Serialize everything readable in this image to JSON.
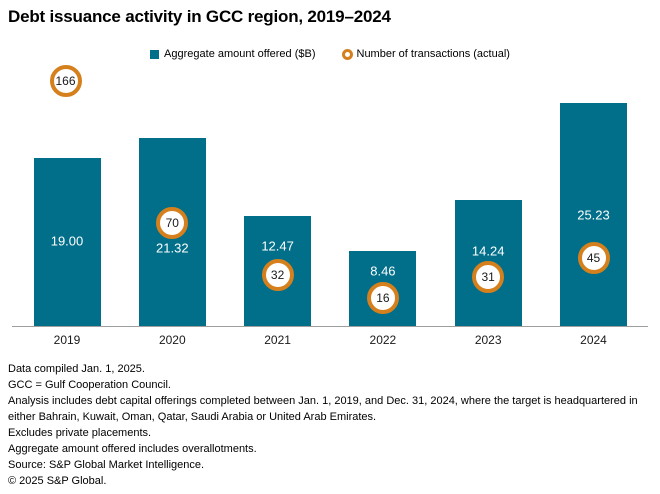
{
  "title": "Debt issuance activity in GCC region, 2019–2024",
  "legend": {
    "amount_label": "Aggregate amount offered ($B)",
    "transactions_label": "Number of transactions (actual)"
  },
  "chart_data": {
    "type": "bar",
    "categories": [
      "2019",
      "2020",
      "2021",
      "2022",
      "2023",
      "2024"
    ],
    "series": [
      {
        "name": "Aggregate amount offered ($B)",
        "values": [
          19.0,
          21.32,
          12.47,
          8.46,
          14.24,
          25.23
        ],
        "labels": [
          "19.00",
          "21.32",
          "12.47",
          "8.46",
          "14.24",
          "25.23"
        ]
      },
      {
        "name": "Number of transactions (actual)",
        "values": [
          166,
          70,
          32,
          16,
          31,
          45
        ],
        "labels": [
          "166",
          "70",
          "32",
          "16",
          "31",
          "45"
        ]
      }
    ],
    "xlabel": "",
    "ylabel": "",
    "ylim": [
      0,
      29.5
    ],
    "grid": false,
    "legend_position": "top",
    "value_labels_shown": true
  },
  "colors": {
    "bar": "#026f8a",
    "transaction_ring": "#d5801c",
    "axis_line": "#9e9e9e",
    "bar_value_text": "#ffffff",
    "circle_text": "#1a1a1a"
  },
  "footnotes": [
    "Data compiled Jan. 1, 2025.",
    "GCC = Gulf Cooperation Council.",
    "Analysis includes debt capital offerings completed between Jan. 1, 2019, and Dec. 31, 2024, where the target is headquartered in either Bahrain, Kuwait, Oman, Qatar, Saudi Arabia or United Arab Emirates.",
    "Excludes private placements.",
    "Aggregate amount offered includes overallotments.",
    "Source: S&P Global Market Intelligence.",
    "© 2025 S&P Global."
  ]
}
